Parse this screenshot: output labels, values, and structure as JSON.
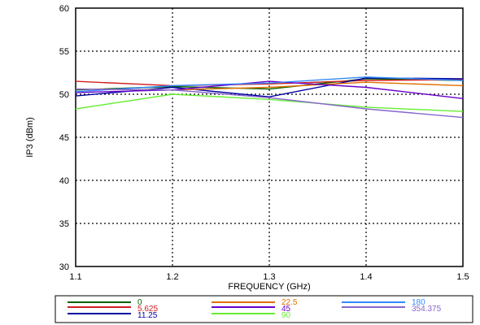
{
  "chart_data": {
    "type": "line",
    "title": "",
    "xlabel": "FREQUENCY (GHz)",
    "ylabel": "IP3 (dBm)",
    "x": [
      1.1,
      1.2,
      1.3,
      1.4,
      1.5
    ],
    "xlim": [
      1.1,
      1.5
    ],
    "ylim": [
      30,
      60
    ],
    "x_ticks": [
      "1.1",
      "1.2",
      "1.3",
      "1.4",
      "1.5"
    ],
    "y_ticks": [
      "30",
      "35",
      "40",
      "45",
      "50",
      "55",
      "60"
    ],
    "grid": true,
    "legend_position": "bottom",
    "series": [
      {
        "name": "0",
        "color": "#006400",
        "values": [
          50.5,
          50.9,
          50.6,
          51.8,
          51.6
        ]
      },
      {
        "name": "5.625",
        "color": "#d02020",
        "values": [
          51.5,
          51.0,
          51.2,
          51.6,
          51.7
        ]
      },
      {
        "name": "11.25",
        "color": "#0000a0",
        "values": [
          49.8,
          50.8,
          49.7,
          51.9,
          51.8
        ]
      },
      {
        "name": "22.5",
        "color": "#e07000",
        "values": [
          50.6,
          50.5,
          50.8,
          51.4,
          51.0
        ]
      },
      {
        "name": "45",
        "color": "#6600cc",
        "values": [
          50.2,
          50.5,
          51.5,
          50.8,
          49.5
        ]
      },
      {
        "name": "90",
        "color": "#66ee33",
        "values": [
          48.3,
          50.0,
          49.4,
          48.5,
          48.0
        ]
      },
      {
        "name": "180",
        "color": "#3388ff",
        "values": [
          50.3,
          51.0,
          51.3,
          52.0,
          51.6
        ]
      },
      {
        "name": "354.375",
        "color": "#8866cc",
        "values": [
          50.6,
          50.5,
          49.6,
          48.3,
          47.3
        ]
      }
    ]
  }
}
